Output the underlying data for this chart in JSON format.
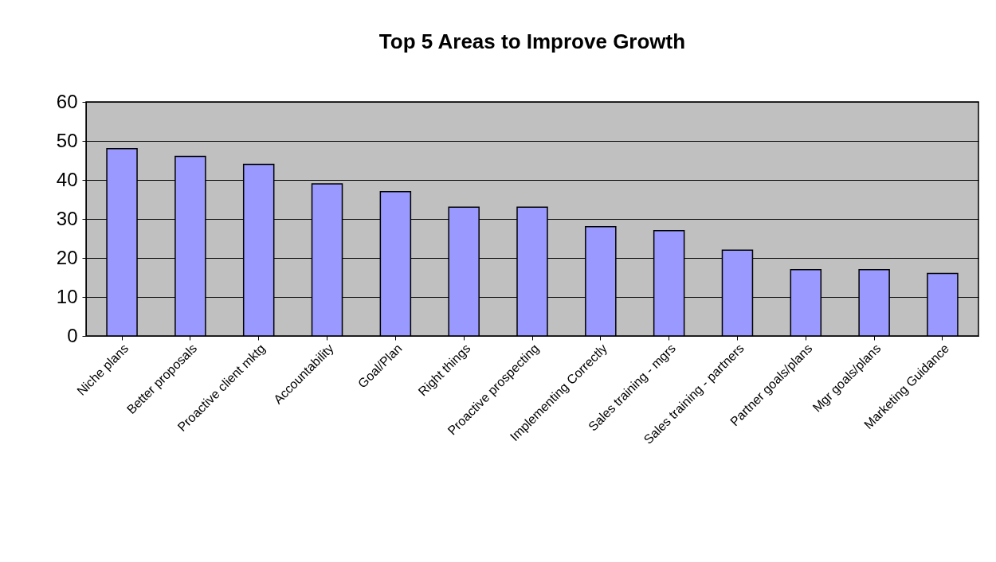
{
  "chart_data": {
    "type": "bar",
    "title": "Top 5 Areas to Improve Growth",
    "categories": [
      "Niche plans",
      "Better proposals",
      "Proactive client mktg",
      "Accountability",
      "Goal/Plan",
      "Right things",
      "Proactive prospecting",
      "Implementing Correctly",
      "Sales training - mgrs",
      "Sales training - partners",
      "Partner goals/plans",
      "Mgr goals/plans",
      "Marketing Guidance"
    ],
    "values": [
      48,
      46,
      44,
      39,
      37,
      33,
      33,
      28,
      27,
      22,
      17,
      17,
      16
    ],
    "color": "#9999ff",
    "ylim": [
      0,
      60
    ],
    "yticks": [
      0,
      10,
      20,
      30,
      40,
      50,
      60
    ],
    "grid": "y"
  }
}
